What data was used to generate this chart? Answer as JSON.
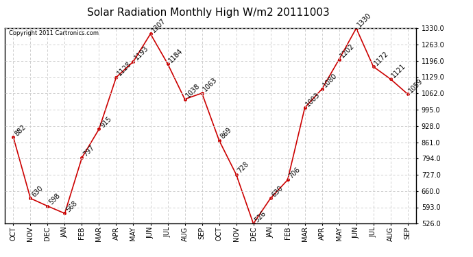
{
  "title": "Solar Radiation Monthly High W/m2 20111003",
  "copyright": "Copyright 2011 Cartronics.com",
  "categories": [
    "OCT",
    "NOV",
    "DEC",
    "JAN",
    "FEB",
    "MAR",
    "APR",
    "MAY",
    "JUN",
    "JUL",
    "AUG",
    "SEP",
    "OCT",
    "NOV",
    "DEC",
    "JAN",
    "FEB",
    "MAR",
    "APR",
    "MAY",
    "JUN",
    "JUL",
    "AUG",
    "SEP"
  ],
  "values": [
    882,
    630,
    598,
    568,
    797,
    915,
    1128,
    1193,
    1307,
    1184,
    1038,
    1063,
    869,
    728,
    526,
    630,
    706,
    1003,
    1080,
    1202,
    1330,
    1172,
    1121,
    1059
  ],
  "line_color": "#cc0000",
  "marker_color": "#cc0000",
  "bg_color": "#ffffff",
  "grid_color": "#c8c8c8",
  "ylim_min": 526.0,
  "ylim_max": 1330.0,
  "yticks": [
    526.0,
    593.0,
    660.0,
    727.0,
    794.0,
    861.0,
    928.0,
    995.0,
    1062.0,
    1129.0,
    1196.0,
    1263.0,
    1330.0
  ],
  "title_fontsize": 11,
  "label_fontsize": 7,
  "annotation_fontsize": 7,
  "copyright_fontsize": 6
}
